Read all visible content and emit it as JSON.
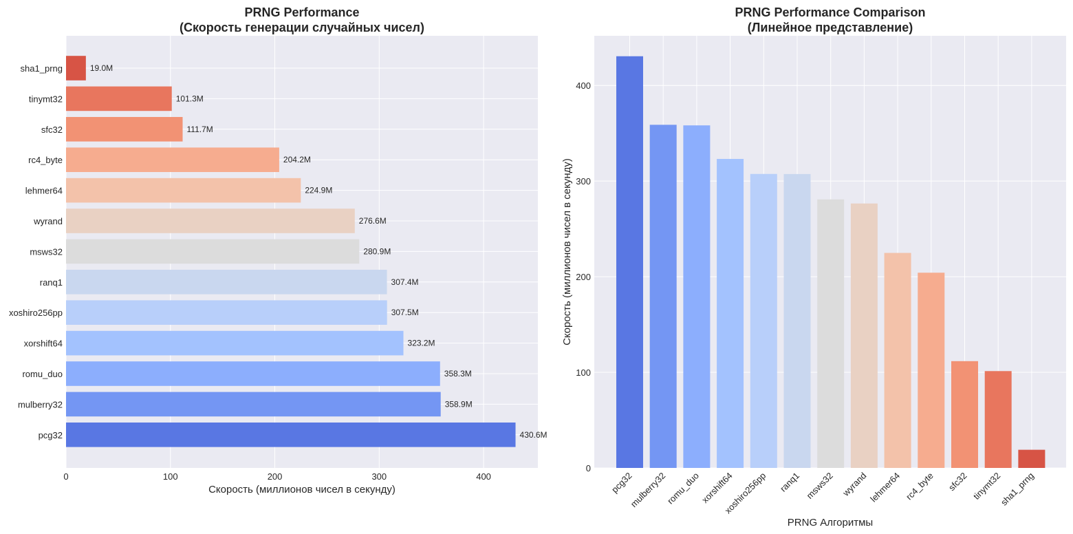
{
  "chart_data": [
    {
      "type": "bar",
      "orientation": "horizontal",
      "title_line1": "PRNG Performance",
      "title_line2": "(Скорость генерации случайных чисел)",
      "xlabel": "Скорость (миллионов чисел в секунду)",
      "ylabel": "",
      "xlim": [
        0,
        452
      ],
      "xticks": [
        0,
        100,
        200,
        300,
        400
      ],
      "grid": true,
      "categories": [
        "sha1_prng",
        "tinymt32",
        "sfc32",
        "rc4_byte",
        "lehmer64",
        "wyrand",
        "msws32",
        "ranq1",
        "xoshiro256pp",
        "xorshift64",
        "romu_duo",
        "mulberry32",
        "pcg32"
      ],
      "values": [
        19.0,
        101.3,
        111.7,
        204.2,
        224.9,
        276.6,
        280.9,
        307.4,
        307.5,
        323.2,
        358.3,
        358.9,
        430.6
      ],
      "value_labels": [
        "19.0M",
        "101.3M",
        "111.7M",
        "204.2M",
        "224.9M",
        "276.6M",
        "280.9M",
        "307.4M",
        "307.5M",
        "323.2M",
        "358.3M",
        "358.9M",
        "430.6M"
      ],
      "colors": [
        "#d75445",
        "#e8765e",
        "#f29274",
        "#f6ac8f",
        "#f3c2aa",
        "#e9d1c3",
        "#dcdcdc",
        "#c9d7ef",
        "#b8cffa",
        "#a3c2fe",
        "#8caefd",
        "#7496f3",
        "#5977e3"
      ]
    },
    {
      "type": "bar",
      "orientation": "vertical",
      "title_line1": "PRNG Performance Comparison",
      "title_line2": "(Линейное представление)",
      "xlabel": "PRNG Алгоритмы",
      "ylabel": "Скорость (миллионов чисел в секунду)",
      "ylim": [
        0,
        452
      ],
      "yticks": [
        0,
        100,
        200,
        300,
        400
      ],
      "grid": true,
      "categories": [
        "pcg32",
        "mulberry32",
        "romu_duo",
        "xorshift64",
        "xoshiro256pp",
        "ranq1",
        "msws32",
        "wyrand",
        "lehmer64",
        "rc4_byte",
        "sfc32",
        "tinymt32",
        "sha1_prng"
      ],
      "values": [
        430.6,
        358.9,
        358.3,
        323.2,
        307.5,
        307.4,
        280.9,
        276.6,
        224.9,
        204.2,
        111.7,
        101.3,
        19.0
      ],
      "colors": [
        "#5977e3",
        "#7496f3",
        "#8caefd",
        "#a3c2fe",
        "#b8cffa",
        "#c9d7ef",
        "#dcdcdc",
        "#e9d1c3",
        "#f3c2aa",
        "#f6ac8f",
        "#f29274",
        "#e8765e",
        "#d75445"
      ]
    }
  ]
}
